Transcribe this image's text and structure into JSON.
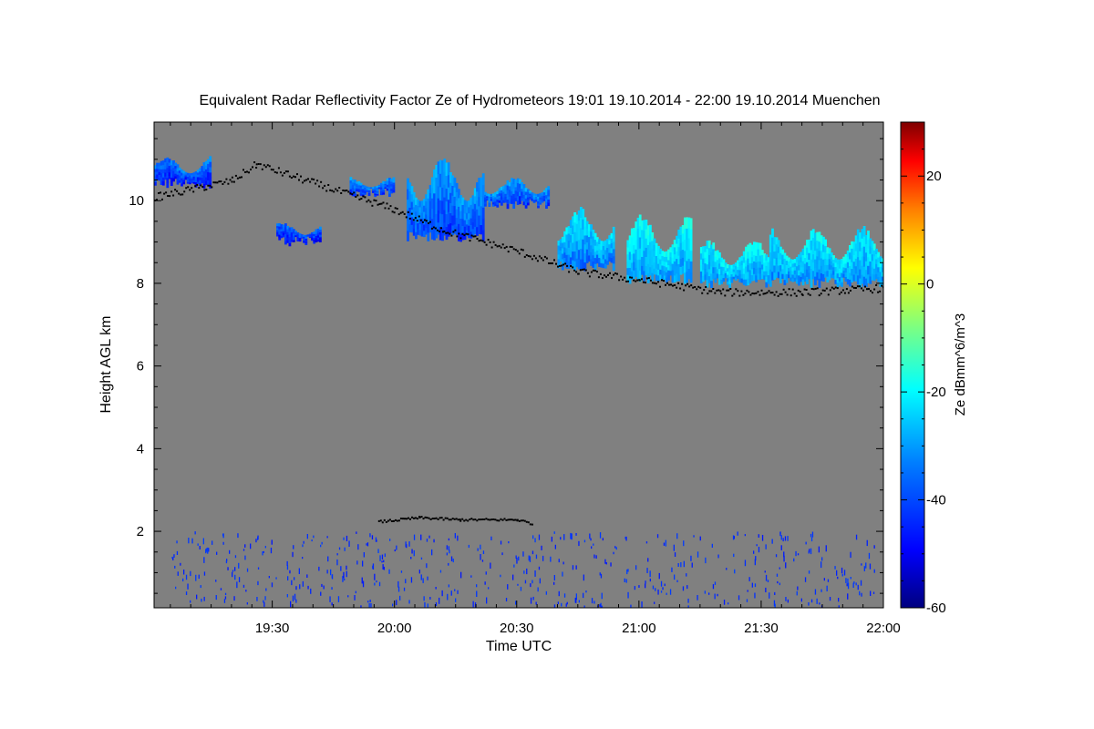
{
  "chart_data": {
    "type": "heatmap",
    "title": "Equivalent Radar Reflectivity Factor Ze of Hydrometeors   19:01 19.10.2014 - 22:00 19.10.2014 Muenchen",
    "xlabel": "Time UTC",
    "ylabel": "Height AGL km",
    "x_ticks": [
      "19:30",
      "20:00",
      "20:30",
      "21:00",
      "21:30",
      "22:00"
    ],
    "x_tick_minutes": [
      1170,
      1200,
      1230,
      1260,
      1290,
      1320
    ],
    "xlim_minutes": [
      1141,
      1320
    ],
    "y_ticks": [
      2,
      4,
      6,
      8,
      10
    ],
    "ylim": [
      0.15,
      11.9
    ],
    "background_color": "#808080",
    "colorbar": {
      "label": "Ze dBmm^6/m^3",
      "ticks": [
        -60,
        -40,
        -20,
        0,
        20
      ],
      "range": [
        -60,
        30
      ],
      "colors": [
        "#00007f",
        "#0000ff",
        "#007fff",
        "#00ffff",
        "#7fff7f",
        "#ffff00",
        "#ff7f00",
        "#ff0000",
        "#7f0000"
      ]
    },
    "cloud_layers": [
      {
        "start": 1141,
        "end": 1155,
        "base_km": 10.3,
        "top_km": 11.1,
        "ze_dbz": -42
      },
      {
        "start": 1171,
        "end": 1182,
        "base_km": 8.9,
        "top_km": 9.5,
        "ze_dbz": -43
      },
      {
        "start": 1189,
        "end": 1200,
        "base_km": 10.1,
        "top_km": 10.6,
        "ze_dbz": -40
      },
      {
        "start": 1203,
        "end": 1222,
        "base_km": 9.0,
        "top_km": 11.2,
        "ze_dbz": -38
      },
      {
        "start": 1222,
        "end": 1238,
        "base_km": 9.8,
        "top_km": 10.6,
        "ze_dbz": -39
      },
      {
        "start": 1240,
        "end": 1254,
        "base_km": 8.3,
        "top_km": 9.9,
        "ze_dbz": -33
      },
      {
        "start": 1257,
        "end": 1273,
        "base_km": 8.0,
        "top_km": 9.7,
        "ze_dbz": -30
      },
      {
        "start": 1275,
        "end": 1292,
        "base_km": 7.9,
        "top_km": 9.1,
        "ze_dbz": -30
      },
      {
        "start": 1292,
        "end": 1320,
        "base_km": 7.9,
        "top_km": 9.4,
        "ze_dbz": -31
      }
    ],
    "cloud_base_line_km": [
      {
        "t": 1141,
        "h": 10.1
      },
      {
        "t": 1160,
        "h": 10.5
      },
      {
        "t": 1166,
        "h": 10.9
      },
      {
        "t": 1200,
        "h": 9.8
      },
      {
        "t": 1212,
        "h": 9.3
      },
      {
        "t": 1230,
        "h": 8.8
      },
      {
        "t": 1245,
        "h": 8.3
      },
      {
        "t": 1260,
        "h": 8.1
      },
      {
        "t": 1280,
        "h": 7.8
      },
      {
        "t": 1300,
        "h": 7.8
      },
      {
        "t": 1320,
        "h": 7.9
      }
    ],
    "low_level_base_km": [
      {
        "t": 1196,
        "h": 2.25
      },
      {
        "t": 1206,
        "h": 2.35
      },
      {
        "t": 1216,
        "h": 2.3
      },
      {
        "t": 1230,
        "h": 2.3
      },
      {
        "t": 1234,
        "h": 2.2
      }
    ]
  }
}
